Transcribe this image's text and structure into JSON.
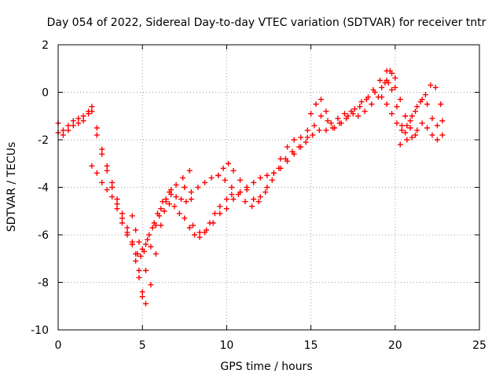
{
  "chart_data": {
    "type": "scatter",
    "title": "Day 054 of 2022, Sidereal Day-to-day VTEC variation (SDTVAR) for receiver tntr",
    "xlabel": "GPS time / hours",
    "ylabel": "SDTVAR / TECUs",
    "xlim": [
      0,
      25
    ],
    "ylim": [
      -10,
      2
    ],
    "xticks": [
      0,
      5,
      10,
      15,
      20,
      25
    ],
    "yticks": [
      -10,
      -8,
      -6,
      -4,
      -2,
      0,
      2
    ],
    "xtick_labels": [
      "0",
      "5",
      "10",
      "15",
      "20",
      "25"
    ],
    "ytick_labels": [
      "-10",
      "-8",
      "-6",
      "-4",
      "-2",
      "0",
      "2"
    ],
    "grid": true,
    "grid_style": "dotted",
    "marker": "+",
    "series_color": "#ff0000",
    "series": [
      {
        "x": [
          0.0,
          0.3,
          0.6,
          0.9,
          1.2,
          1.5,
          1.8,
          2.0,
          2.3,
          2.6,
          2.9,
          3.2,
          3.5,
          3.8,
          4.1,
          4.4,
          4.7,
          4.9,
          5.1,
          5.3,
          5.6,
          5.9,
          6.2,
          6.6,
          7.0,
          7.4,
          7.8
        ],
        "y": [
          -1.3,
          -1.6,
          -1.4,
          -1.2,
          -1.1,
          -1.2,
          -0.9,
          -0.8,
          -1.8,
          -2.6,
          -3.3,
          -4.0,
          -4.7,
          -5.3,
          -5.9,
          -6.4,
          -6.8,
          -6.9,
          -6.7,
          -6.2,
          -5.7,
          -5.1,
          -4.6,
          -4.2,
          -3.9,
          -3.6,
          -3.3
        ]
      },
      {
        "x": [
          0.0,
          0.3,
          0.6,
          0.9,
          1.2,
          1.5,
          1.8,
          2.0,
          2.3,
          2.6,
          2.9,
          3.2,
          3.5,
          3.8,
          4.1,
          4.4,
          4.6,
          4.8,
          5.0,
          5.2,
          5.5,
          5.8,
          6.1,
          6.4,
          6.7
        ],
        "y": [
          -1.7,
          -1.8,
          -1.6,
          -1.4,
          -1.3,
          -1.0,
          -0.8,
          -0.6,
          -1.5,
          -2.4,
          -3.1,
          -3.8,
          -4.5,
          -5.1,
          -5.7,
          -6.3,
          -6.8,
          -7.5,
          -8.4,
          -8.9,
          -8.1,
          -6.8,
          -5.6,
          -4.6,
          -4.1
        ]
      },
      {
        "x": [
          2.0,
          2.3,
          2.6,
          2.9,
          3.2,
          3.5,
          3.8,
          4.1,
          4.4,
          4.6,
          4.8,
          5.0,
          5.2,
          5.5,
          5.8,
          6.1,
          6.4,
          6.7,
          7.0,
          7.3,
          7.6,
          7.9
        ],
        "y": [
          -3.1,
          -3.4,
          -3.8,
          -4.1,
          -4.4,
          -4.9,
          -5.5,
          -6.0,
          -6.4,
          -7.1,
          -7.8,
          -8.6,
          -7.5,
          -6.5,
          -5.6,
          -4.9,
          -4.5,
          -4.3,
          -4.4,
          -4.5,
          -4.6,
          -4.5
        ]
      },
      {
        "x": [
          4.4,
          4.6,
          4.8,
          5.0,
          5.2,
          5.4,
          5.7,
          6.0,
          6.3,
          6.6,
          6.9,
          7.2,
          7.5,
          7.8,
          8.1,
          8.4,
          8.7,
          9.0,
          9.3,
          9.6,
          10.0,
          10.3
        ],
        "y": [
          -5.2,
          -5.8,
          -6.3,
          -6.6,
          -6.4,
          -6.0,
          -5.5,
          -5.2,
          -5.0,
          -4.7,
          -4.8,
          -5.1,
          -5.3,
          -5.7,
          -6.0,
          -6.1,
          -5.9,
          -5.5,
          -5.1,
          -4.8,
          -4.5,
          -4.3
        ]
      },
      {
        "x": [
          7.5,
          7.9,
          8.3,
          8.7,
          9.1,
          9.5,
          9.9,
          10.3,
          10.7,
          11.1,
          11.5,
          11.9,
          12.3,
          12.7,
          13.1,
          13.5,
          13.9,
          14.3,
          14.7,
          15.1,
          15.5,
          15.9,
          16.3,
          16.7,
          17.1,
          17.5,
          17.9,
          18.3,
          18.7,
          19.1,
          19.5,
          19.8
        ],
        "y": [
          -4.0,
          -4.2,
          -4.0,
          -3.8,
          -3.6,
          -3.5,
          -3.7,
          -4.0,
          -4.3,
          -4.6,
          -4.8,
          -4.6,
          -4.2,
          -3.7,
          -3.2,
          -2.8,
          -2.5,
          -2.3,
          -2.1,
          -1.8,
          -1.6,
          -1.6,
          -1.5,
          -1.3,
          -1.1,
          -0.9,
          -0.6,
          -0.3,
          0.1,
          0.5,
          0.9,
          0.8
        ]
      },
      {
        "x": [
          8.0,
          8.4,
          8.8,
          9.2,
          9.6,
          10.0,
          10.4,
          10.8,
          11.2,
          11.6,
          12.0,
          12.4,
          12.8,
          13.2,
          13.6,
          14.0,
          14.4,
          14.8,
          15.2,
          15.6,
          16.0,
          16.4,
          16.8,
          17.2,
          17.6,
          18.0,
          18.4,
          18.8,
          19.2,
          19.6,
          20.0
        ],
        "y": [
          -5.6,
          -5.9,
          -5.8,
          -5.5,
          -5.1,
          -4.9,
          -4.5,
          -4.2,
          -4.0,
          -3.8,
          -3.6,
          -3.5,
          -3.4,
          -3.2,
          -2.9,
          -2.6,
          -2.3,
          -1.9,
          -1.4,
          -1.0,
          -1.2,
          -1.5,
          -1.3,
          -1.0,
          -0.7,
          -0.4,
          -0.2,
          0.0,
          0.2,
          0.4,
          0.2
        ]
      },
      {
        "x": [
          9.5,
          9.8,
          10.1,
          10.4,
          10.8,
          11.2,
          11.6,
          12.0,
          12.4,
          12.8,
          13.2,
          13.6,
          14.0,
          14.4,
          14.8,
          15.0,
          15.3,
          15.6,
          15.9,
          16.2,
          16.6,
          17.0,
          17.4,
          17.8,
          18.2,
          18.6,
          19.0,
          19.4,
          19.7,
          20.0,
          20.3,
          20.6,
          20.9,
          21.2
        ],
        "y": [
          -3.5,
          -3.2,
          -3.0,
          -3.3,
          -3.7,
          -4.1,
          -4.5,
          -4.4,
          -4.0,
          -3.4,
          -2.8,
          -2.3,
          -2.0,
          -1.9,
          -1.6,
          -0.9,
          -0.5,
          -0.3,
          -0.8,
          -1.3,
          -1.1,
          -0.9,
          -0.8,
          -1.0,
          -0.8,
          -0.5,
          -0.2,
          0.4,
          0.9,
          0.6,
          -0.3,
          -1.0,
          -1.5,
          -1.8
        ]
      },
      {
        "x": [
          19.5,
          19.8,
          20.1,
          20.4,
          20.7,
          21.0,
          21.3,
          21.6,
          21.9,
          22.2,
          22.5,
          22.8
        ],
        "y": [
          0.5,
          0.1,
          -0.6,
          -1.4,
          -2.0,
          -1.9,
          -1.6,
          -1.3,
          -1.5,
          -1.8,
          -2.0,
          -1.8
        ]
      },
      {
        "x": [
          19.2,
          19.5,
          19.8,
          20.1,
          20.4,
          20.7,
          21.0,
          21.3,
          21.6,
          21.9,
          22.2,
          22.5,
          22.8
        ],
        "y": [
          -0.2,
          -0.5,
          -0.9,
          -1.3,
          -1.6,
          -1.4,
          -1.0,
          -0.6,
          -0.3,
          -0.5,
          -1.1,
          -1.4,
          -1.2
        ]
      },
      {
        "x": [
          20.3,
          20.6,
          20.9,
          21.2,
          21.5,
          21.8,
          22.1,
          22.4,
          22.7
        ],
        "y": [
          -2.2,
          -1.7,
          -1.2,
          -0.8,
          -0.4,
          -0.1,
          0.3,
          0.2,
          -0.5
        ]
      }
    ]
  }
}
